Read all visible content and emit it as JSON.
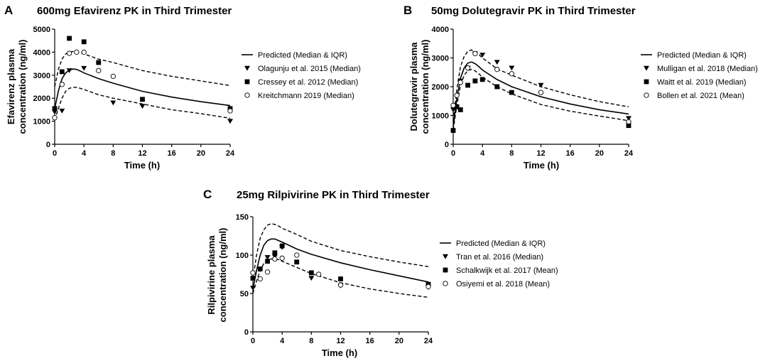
{
  "chart_data": [
    {
      "type": "line",
      "panel": "A",
      "title": "600mg Efavirenz PK in Third Trimester",
      "xlabel": "Time (h)",
      "ylabel": [
        "Efavirenz plasma",
        "concentration (ng/ml)"
      ],
      "xlim": [
        0,
        24
      ],
      "ylim": [
        0,
        5000
      ],
      "xticks": [
        0,
        4,
        8,
        12,
        16,
        20,
        24
      ],
      "yticks": [
        0,
        1000,
        2000,
        3000,
        4000,
        5000
      ],
      "legend": [
        "Predicted (Median & IQR)",
        "Olagunju et al. 2015 (Median)",
        "Cressey et al. 2012 (Median)",
        "Kreitchmann 2019 (Median)"
      ],
      "predicted": {
        "x": [
          0,
          0.5,
          1,
          1.5,
          2,
          2.5,
          3,
          3.5,
          4,
          6,
          8,
          12,
          16,
          20,
          24
        ],
        "median": [
          1550,
          2300,
          2850,
          3100,
          3220,
          3270,
          3250,
          3180,
          3100,
          2850,
          2650,
          2300,
          2050,
          1850,
          1680
        ],
        "q1": [
          1050,
          1550,
          2000,
          2300,
          2430,
          2470,
          2470,
          2430,
          2380,
          2150,
          2000,
          1750,
          1500,
          1330,
          1130
        ],
        "q3": [
          2500,
          3250,
          3700,
          3920,
          4000,
          4030,
          4020,
          3980,
          3920,
          3700,
          3550,
          3200,
          2950,
          2750,
          2550
        ]
      },
      "observed": [
        {
          "name": "Olagunju et al. 2015 (Median)",
          "marker": "triangle",
          "x": [
            0,
            1,
            2,
            4,
            8,
            12,
            24
          ],
          "y": [
            1400,
            1450,
            3200,
            3300,
            1800,
            1650,
            1000
          ]
        },
        {
          "name": "Cressey et al. 2012 (Median)",
          "marker": "square",
          "x": [
            0,
            1,
            2,
            4,
            6,
            12,
            24
          ],
          "y": [
            1550,
            3150,
            4600,
            4450,
            3550,
            1950,
            1550
          ]
        },
        {
          "name": "Kreitchmann 2019 (Median)",
          "marker": "circle",
          "x": [
            0,
            1,
            2,
            3,
            4,
            6,
            8,
            24
          ],
          "y": [
            1150,
            2600,
            3950,
            4000,
            4000,
            3200,
            2950,
            1450
          ]
        }
      ]
    },
    {
      "type": "line",
      "panel": "B",
      "title": "50mg Dolutegravir PK in Third Trimester",
      "xlabel": "Time (h)",
      "ylabel": [
        "Dolutegravir plasma",
        "concentration (ng/ml)"
      ],
      "xlim": [
        0,
        24
      ],
      "ylim": [
        0,
        4000
      ],
      "xticks": [
        0,
        4,
        8,
        12,
        16,
        20,
        24
      ],
      "yticks": [
        0,
        1000,
        2000,
        3000,
        4000
      ],
      "legend": [
        "Predicted (Median & IQR)",
        "Mulligan et al. 2018 (Median)",
        "Waitt et al. 2019 (Median)",
        "Bollen et al. 2021 (Mean)"
      ],
      "predicted": {
        "x": [
          0,
          0.5,
          1,
          1.5,
          2,
          2.5,
          3,
          3.5,
          4,
          6,
          8,
          12,
          16,
          20,
          24
        ],
        "median": [
          600,
          1600,
          2300,
          2650,
          2820,
          2860,
          2800,
          2700,
          2580,
          2250,
          2000,
          1650,
          1400,
          1200,
          1050
        ],
        "q1": [
          500,
          1350,
          2050,
          2400,
          2560,
          2600,
          2550,
          2450,
          2330,
          2000,
          1750,
          1380,
          1150,
          980,
          820
        ],
        "q3": [
          800,
          1900,
          2700,
          3050,
          3230,
          3280,
          3220,
          3120,
          3000,
          2620,
          2400,
          2000,
          1720,
          1480,
          1300
        ]
      },
      "observed": [
        {
          "name": "Mulligan et al. 2018 (Median)",
          "marker": "triangle",
          "x": [
            0,
            1,
            2,
            3,
            4,
            6,
            8,
            12,
            24
          ],
          "y": [
            1200,
            2200,
            2650,
            3150,
            3100,
            2850,
            2650,
            2050,
            900
          ]
        },
        {
          "name": "Waitt et al. 2019 (Median)",
          "marker": "square",
          "x": [
            0,
            0.5,
            1,
            2,
            3,
            4,
            6,
            8,
            24
          ],
          "y": [
            480,
            1300,
            1200,
            2050,
            2200,
            2250,
            2000,
            1800,
            650
          ]
        },
        {
          "name": "Bollen et al. 2021 (Mean)",
          "marker": "circle",
          "x": [
            0,
            0.5,
            1,
            2,
            3,
            6,
            8,
            12,
            24
          ],
          "y": [
            1350,
            1700,
            2150,
            2650,
            3150,
            2600,
            2450,
            1800,
            780
          ]
        }
      ]
    },
    {
      "type": "line",
      "panel": "C",
      "title": "25mg Rilpivirine PK in Third Trimester",
      "xlabel": "Time (h)",
      "ylabel": [
        "Rilpivirine plasma",
        "concentration (ng/ml)"
      ],
      "xlim": [
        0,
        24
      ],
      "ylim": [
        0,
        150
      ],
      "xticks": [
        0,
        4,
        8,
        12,
        16,
        20,
        24
      ],
      "yticks": [
        0,
        50,
        100,
        150
      ],
      "legend": [
        "Predicted (Median & IQR)",
        "Tran et al. 2016 (Median)",
        "Schalkwijk et al. 2017 (Mean)",
        "Osiyemi et al. 2018 (Mean)"
      ],
      "predicted": {
        "x": [
          0,
          0.5,
          1,
          1.5,
          2,
          2.5,
          3,
          3.5,
          4,
          6,
          8,
          12,
          16,
          20,
          24
        ],
        "median": [
          55,
          80,
          100,
          113,
          119,
          121,
          121,
          119,
          117,
          108,
          101,
          90,
          81,
          73,
          65
        ],
        "q1": [
          50,
          66,
          80,
          89,
          94,
          95,
          95,
          94,
          92,
          84,
          76,
          64,
          56,
          50,
          45
        ],
        "q3": [
          68,
          100,
          122,
          133,
          139,
          141,
          140,
          138,
          135,
          127,
          118,
          106,
          98,
          91,
          85
        ]
      },
      "observed": [
        {
          "name": "Tran et al. 2016 (Median)",
          "marker": "triangle",
          "x": [
            0,
            1,
            2,
            3,
            4,
            8,
            12,
            24
          ],
          "y": [
            57,
            82,
            97,
            98,
            110,
            70,
            60,
            58
          ]
        },
        {
          "name": "Schalkwijk et al. 2017 (Mean)",
          "marker": "square",
          "x": [
            0,
            1,
            2,
            3,
            4,
            6,
            8,
            12,
            24
          ],
          "y": [
            70,
            82,
            92,
            103,
            112,
            91,
            77,
            69,
            62
          ]
        },
        {
          "name": "Osiyemi et al. 2018 (Mean)",
          "marker": "circle",
          "x": [
            0,
            1,
            2,
            3,
            4,
            6,
            9,
            12,
            24
          ],
          "y": [
            77,
            69,
            78,
            95,
            96,
            100,
            75,
            61,
            59
          ]
        }
      ]
    }
  ]
}
